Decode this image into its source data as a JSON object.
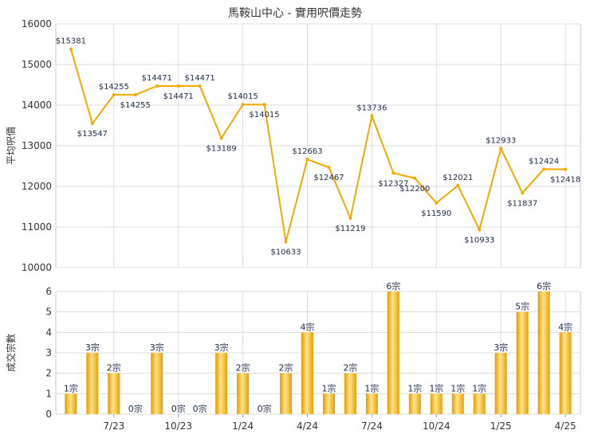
{
  "chart_data": [
    {
      "type": "line",
      "title": "馬鞍山中心 - 實用呎價走勢",
      "ylabel": "平均呎價",
      "ylim": [
        10000,
        16000
      ],
      "yticks": [
        "10000",
        "11000",
        "12000",
        "13000",
        "14000",
        "15000",
        "16000"
      ],
      "grid": true,
      "legend": "none",
      "color": "#f5a800",
      "points": [
        {
          "i": 0,
          "value": 15381,
          "label": "$15381"
        },
        {
          "i": 1,
          "value": 13547,
          "label": "$13547"
        },
        {
          "i": 2,
          "value": 14255,
          "label": "$14255"
        },
        {
          "i": 3,
          "value": 14255,
          "label": "$14255"
        },
        {
          "i": 4,
          "value": 14471,
          "label": "$14471"
        },
        {
          "i": 5,
          "value": 14471,
          "label": "$14471"
        },
        {
          "i": 6,
          "value": 14471,
          "label": "$14471"
        },
        {
          "i": 7,
          "value": 13189,
          "label": "$13189"
        },
        {
          "i": 8,
          "value": 14015,
          "label": "$14015"
        },
        {
          "i": 9,
          "value": 14015,
          "label": "$14015"
        },
        {
          "i": 10,
          "value": 10633,
          "label": "$10633"
        },
        {
          "i": 11,
          "value": 12663,
          "label": "$12663"
        },
        {
          "i": 12,
          "value": 12467,
          "label": "$12467"
        },
        {
          "i": 13,
          "value": 11219,
          "label": "$11219"
        },
        {
          "i": 14,
          "value": 13736,
          "label": "$13736"
        },
        {
          "i": 15,
          "value": 12327,
          "label": "$12327"
        },
        {
          "i": 16,
          "value": 12200,
          "label": "$12200"
        },
        {
          "i": 17,
          "value": 11590,
          "label": "$11590"
        },
        {
          "i": 18,
          "value": 12021,
          "label": "$12021"
        },
        {
          "i": 19,
          "value": 10933,
          "label": "$10933"
        },
        {
          "i": 20,
          "value": 12933,
          "label": "$12933"
        },
        {
          "i": 21,
          "value": 11837,
          "label": "$11837"
        },
        {
          "i": 22,
          "value": 12424,
          "label": "$12424"
        },
        {
          "i": 23,
          "value": 12418,
          "label": "$12418"
        }
      ]
    },
    {
      "type": "bar",
      "ylabel": "成交宗數",
      "ylim": [
        0,
        6
      ],
      "yticks": [
        "0",
        "1",
        "2",
        "3",
        "4",
        "5",
        "6"
      ],
      "grid": true,
      "legend": "none",
      "color": "#f5b400",
      "values": [
        1,
        3,
        2,
        0,
        3,
        0,
        0,
        3,
        2,
        0,
        2,
        4,
        1,
        2,
        1,
        6,
        1,
        1,
        1,
        1,
        3,
        5,
        6,
        4
      ],
      "labels": [
        "1宗",
        "3宗",
        "2宗",
        "0宗",
        "3宗",
        "0宗",
        "0宗",
        "3宗",
        "2宗",
        "0宗",
        "2宗",
        "4宗",
        "1宗",
        "2宗",
        "1宗",
        "6宗",
        "1宗",
        "1宗",
        "1宗",
        "1宗",
        "3宗",
        "5宗",
        "6宗",
        "4宗"
      ],
      "xticks": [
        {
          "i": 2,
          "label": "7/23"
        },
        {
          "i": 5,
          "label": "10/23"
        },
        {
          "i": 8,
          "label": "1/24"
        },
        {
          "i": 11,
          "label": "4/24"
        },
        {
          "i": 14,
          "label": "7/24"
        },
        {
          "i": 17,
          "label": "10/24"
        },
        {
          "i": 20,
          "label": "1/25"
        },
        {
          "i": 23,
          "label": "4/25"
        }
      ]
    }
  ]
}
